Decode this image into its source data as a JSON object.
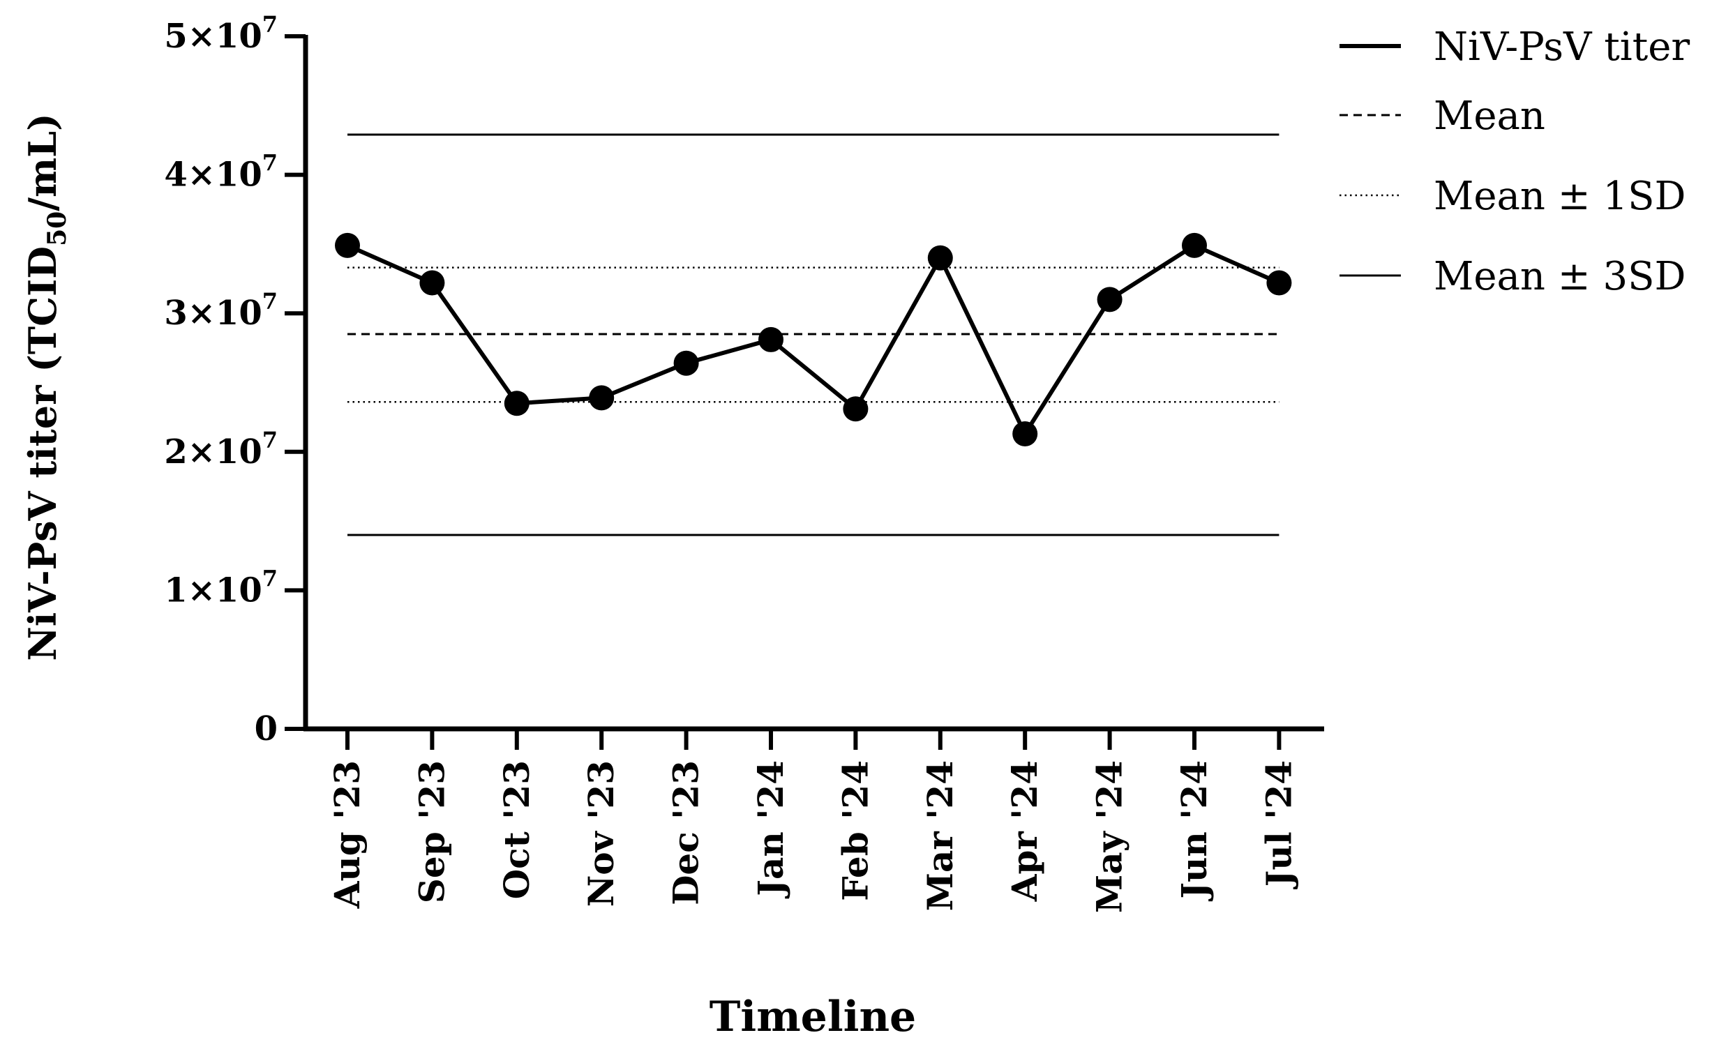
{
  "chart_data": {
    "type": "line",
    "xlabel": "Timeline",
    "ylabel": {
      "prefix": "NiV-PsV titer (TCID",
      "subscript": "50",
      "suffix": "/mL)"
    },
    "ylim": [
      0,
      50000000
    ],
    "yticks": [
      {
        "value": 0,
        "base": "0",
        "exp": ""
      },
      {
        "value": 10000000,
        "base": "1×10",
        "exp": "7"
      },
      {
        "value": 20000000,
        "base": "2×10",
        "exp": "7"
      },
      {
        "value": 30000000,
        "base": "3×10",
        "exp": "7"
      },
      {
        "value": 40000000,
        "base": "4×10",
        "exp": "7"
      },
      {
        "value": 50000000,
        "base": "5×10",
        "exp": "7"
      }
    ],
    "categories": [
      "Aug '23",
      "Sep '23",
      "Oct '23",
      "Nov '23",
      "Dec '23",
      "Jan '24",
      "Feb '24",
      "Mar '24",
      "Apr '24",
      "May '24",
      "Jun '24",
      "Jul '24"
    ],
    "series": [
      {
        "name": "NiV-PsV titer",
        "values": [
          34900000,
          32200000,
          23500000,
          23900000,
          26400000,
          28100000,
          23100000,
          34000000,
          21300000,
          31000000,
          34900000,
          32200000
        ]
      }
    ],
    "reference_lines": [
      {
        "name": "Mean",
        "value": 28500000,
        "style": "dashed"
      },
      {
        "name": "Mean ± 1SD",
        "values": [
          23600000,
          33300000
        ],
        "style": "dotted"
      },
      {
        "name": "Mean ± 3SD",
        "values": [
          14000000,
          42900000
        ],
        "style": "solid"
      }
    ],
    "legend": {
      "placement": "top-right",
      "entries": [
        "NiV-PsV titer",
        "Mean",
        "Mean ± 1SD",
        "Mean ± 3SD"
      ]
    },
    "grid": false,
    "colors": {
      "line": "#000000",
      "marker": "#000000"
    }
  }
}
